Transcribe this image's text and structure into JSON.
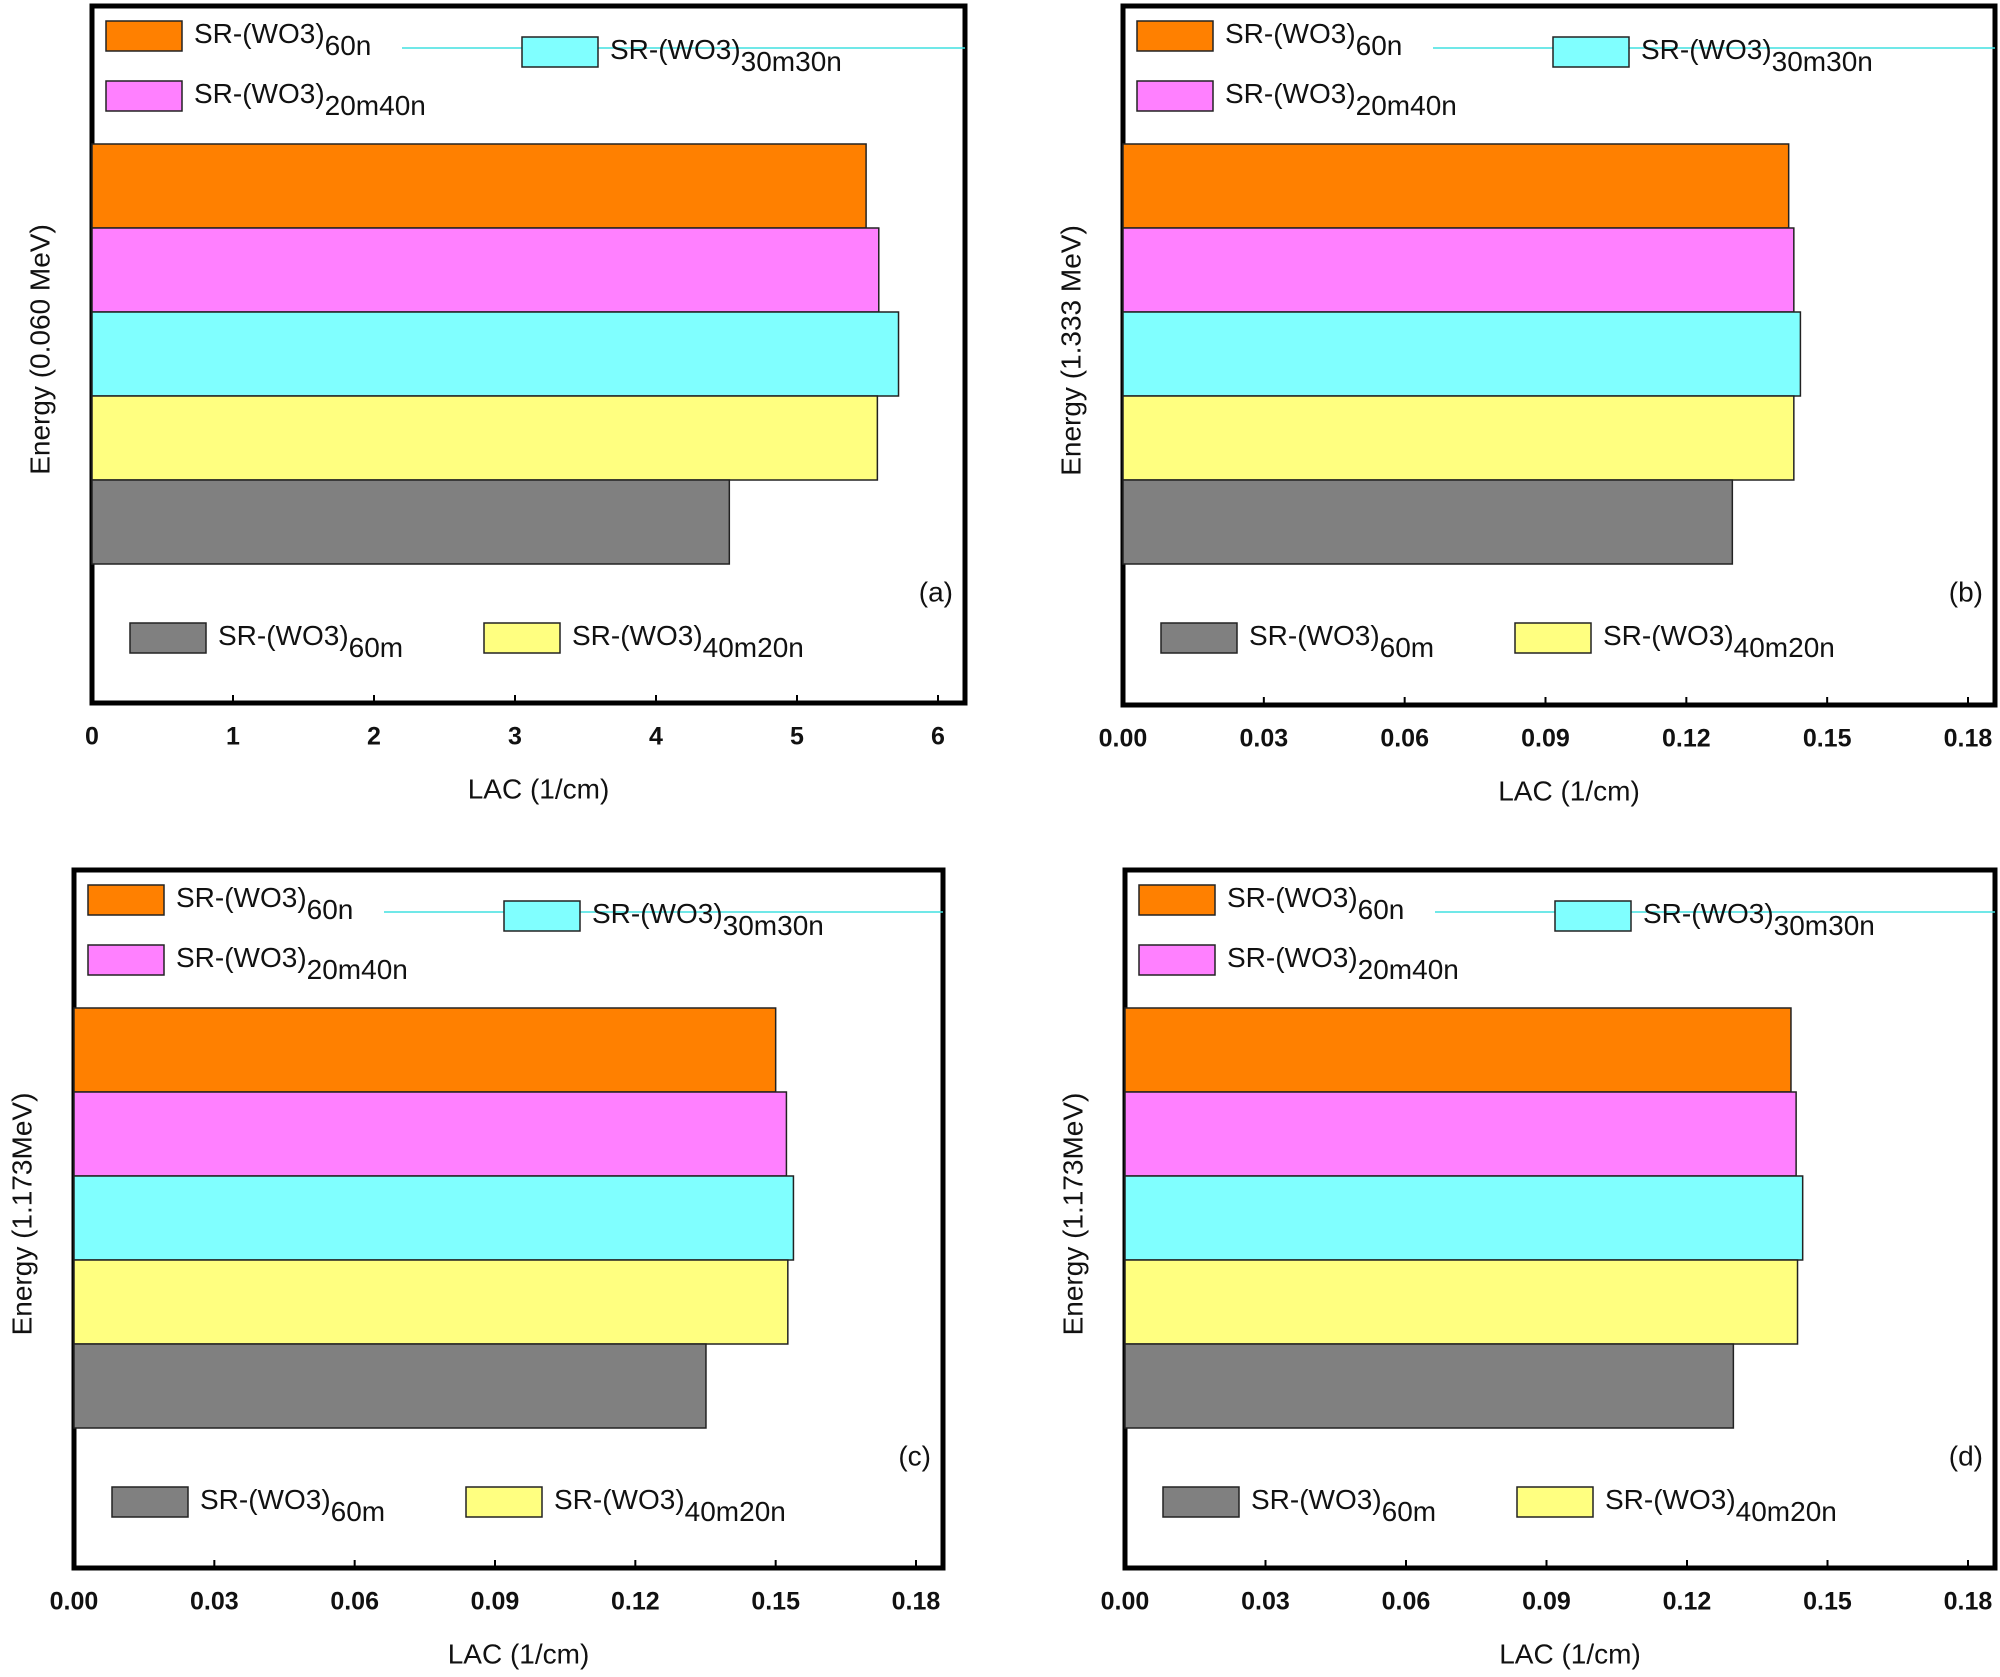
{
  "chart_data": [
    {
      "type": "hbar",
      "ylabel": "Energy (0.060 MeV)",
      "xlabel": "LAC (1/cm)",
      "panel_label": "(a)",
      "xlim": [
        0,
        6
      ],
      "xticks": [
        0,
        1,
        2,
        3,
        4,
        5,
        6
      ],
      "series": [
        {
          "name": "SR-(WO3)60n",
          "color": "#ff8000",
          "values": [
            5.49
          ]
        },
        {
          "name": "SR-(WO3)20m40n",
          "color": "#ff80ff",
          "values": [
            5.58
          ]
        },
        {
          "name": "SR-(WO3)30m30n",
          "color": "#80ffff",
          "values": [
            5.72
          ]
        },
        {
          "name": "SR-(WO3)40m20n",
          "color": "#ffff80",
          "values": [
            5.57
          ]
        },
        {
          "name": "SR-(WO3)60m",
          "color": "#808080",
          "values": [
            4.52
          ]
        }
      ]
    },
    {
      "type": "hbar",
      "ylabel": "Energy (1.333 MeV)",
      "xlabel": "LAC (1/cm)",
      "panel_label": "(b)",
      "xlim": [
        0,
        0.18
      ],
      "xticks": [
        {
          "value": 0,
          "label": "0.00"
        },
        0.03,
        0.06,
        0.09,
        0.12,
        0.15,
        0.18
      ],
      "series": [
        {
          "name": "SR-(WO3)60n",
          "color": "#ff8000",
          "values": [
            0.1418
          ]
        },
        {
          "name": "SR-(WO3)20m40n",
          "color": "#ff80ff",
          "values": [
            0.1429
          ]
        },
        {
          "name": "SR-(WO3)30m30n",
          "color": "#80ffff",
          "values": [
            0.1443
          ]
        },
        {
          "name": "SR-(WO3)40m20n",
          "color": "#ffff80",
          "values": [
            0.1429
          ]
        },
        {
          "name": "SR-(WO3)60m",
          "color": "#808080",
          "values": [
            0.1298
          ]
        }
      ]
    },
    {
      "type": "hbar",
      "ylabel": "Energy (1.173MeV)",
      "xlabel": "LAC (1/cm)",
      "panel_label": "(c)",
      "xlim": [
        0,
        0.18
      ],
      "xticks": [
        {
          "value": 0,
          "label": "0.00"
        },
        0.03,
        0.06,
        0.09,
        0.12,
        0.15,
        0.18
      ],
      "series": [
        {
          "name": "SR-(WO3)60n",
          "color": "#ff8000",
          "values": [
            0.15
          ]
        },
        {
          "name": "SR-(WO3)20m40n",
          "color": "#ff80ff",
          "values": [
            0.1523
          ]
        },
        {
          "name": "SR-(WO3)30m30n",
          "color": "#80ffff",
          "values": [
            0.1538
          ]
        },
        {
          "name": "SR-(WO3)40m20n",
          "color": "#ffff80",
          "values": [
            0.1526
          ]
        },
        {
          "name": "SR-(WO3)60m",
          "color": "#808080",
          "values": [
            0.1351
          ]
        }
      ]
    },
    {
      "type": "hbar",
      "ylabel": "Energy (1.173MeV)",
      "xlabel": "LAC (1/cm)",
      "panel_label": "(d)",
      "xlim": [
        0,
        0.18
      ],
      "xticks": [
        {
          "value": 0,
          "label": "0.00"
        },
        0.03,
        0.06,
        0.09,
        0.12,
        0.15,
        0.18
      ],
      "series": [
        {
          "name": "SR-(WO3)60n",
          "color": "#ff8000",
          "values": [
            0.1422
          ]
        },
        {
          "name": "SR-(WO3)20m40n",
          "color": "#ff80ff",
          "values": [
            0.1433
          ]
        },
        {
          "name": "SR-(WO3)30m30n",
          "color": "#80ffff",
          "values": [
            0.1447
          ]
        },
        {
          "name": "SR-(WO3)40m20n",
          "color": "#ffff80",
          "values": [
            0.1436
          ]
        },
        {
          "name": "SR-(WO3)60m",
          "color": "#808080",
          "values": [
            0.1299
          ]
        }
      ]
    }
  ]
}
